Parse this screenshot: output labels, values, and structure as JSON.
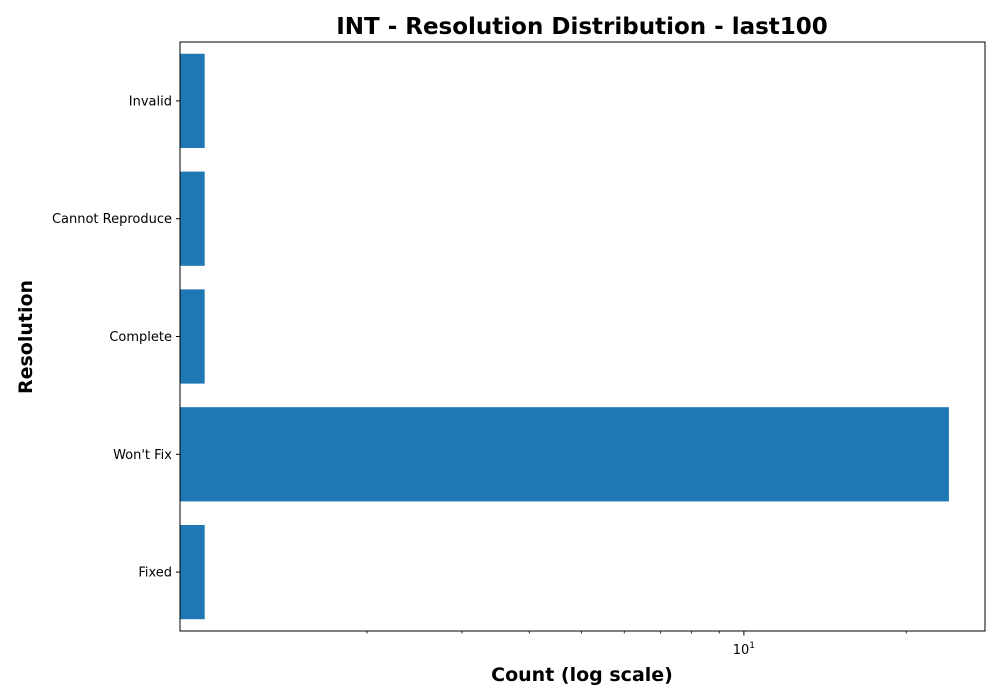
{
  "chart_data": {
    "type": "bar",
    "orientation": "horizontal",
    "title": "INT - Resolution Distribution - last100",
    "xlabel": "Count (log scale)",
    "ylabel": "Resolution",
    "x_scale": "log",
    "xlim": [
      0.9,
      28
    ],
    "x_ticks": [
      {
        "value": 10,
        "base": "10",
        "exp": "1"
      }
    ],
    "categories": [
      "Fixed",
      "Won't Fix",
      "Complete",
      "Cannot Reproduce",
      "Invalid"
    ],
    "values": [
      1,
      24,
      1,
      1,
      1
    ],
    "bar_color": "#1f77b4",
    "grid": false,
    "legend": "none"
  }
}
